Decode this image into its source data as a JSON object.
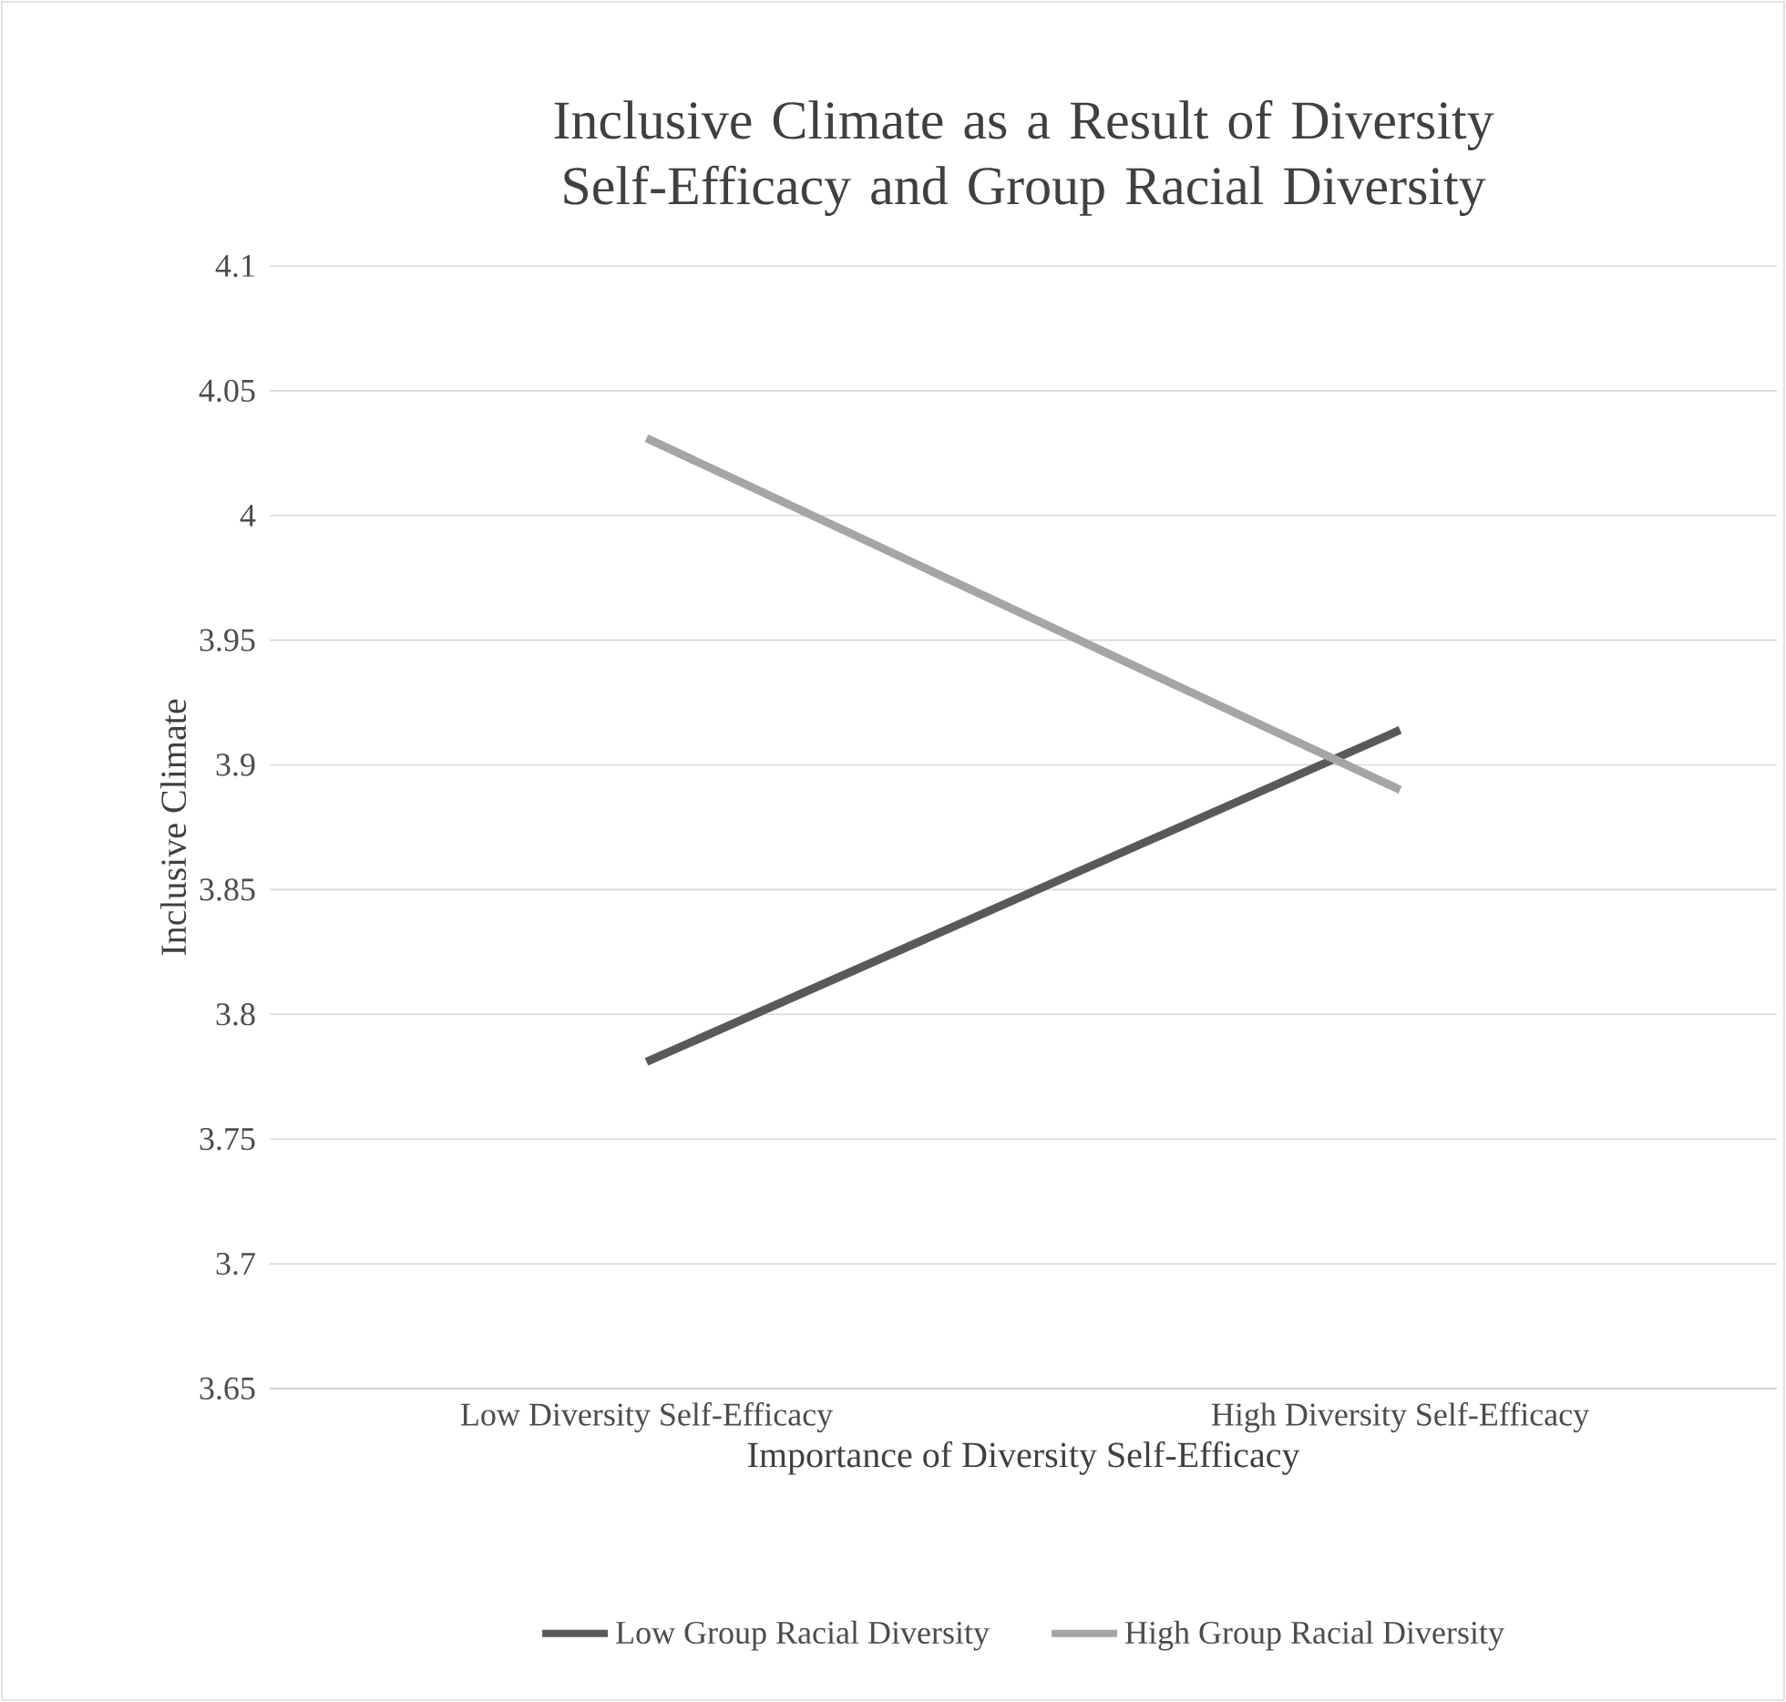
{
  "chart_data": {
    "type": "line",
    "title": "Inclusive Climate as a Result of Diversity Self-Efficacy and Group Racial Diversity",
    "xlabel": "Importance of Diversity Self-Efficacy",
    "ylabel": "Inclusive Climate",
    "categories": [
      "Low Diversity Self-Efficacy",
      "High Diversity Self-Efficacy"
    ],
    "series": [
      {
        "name": "Low Group Racial Diversity",
        "color": "#595959",
        "values": [
          3.781,
          3.914
        ]
      },
      {
        "name": "High Group Racial Diversity",
        "color": "#a5a5a5",
        "values": [
          4.031,
          3.89
        ]
      }
    ],
    "ylim": [
      3.65,
      4.1
    ],
    "yticks": [
      3.65,
      3.7,
      3.75,
      3.8,
      3.85,
      3.9,
      3.95,
      4,
      4.05,
      4.1
    ],
    "grid": "y",
    "legend": "bottom"
  }
}
